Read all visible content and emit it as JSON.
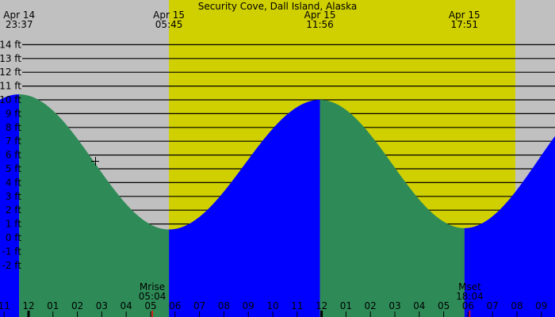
{
  "chart_data": {
    "type": "area",
    "title": "Security Cove, Dall Island, Alaska",
    "y_unit": "ft",
    "ylim": [
      -2,
      14
    ],
    "y_ticks": [
      14,
      13,
      12,
      11,
      10,
      9,
      8,
      7,
      6,
      5,
      4,
      3,
      2,
      1,
      0,
      -1,
      -2
    ],
    "y_tick_labels": [
      "14 ft",
      "13 ft",
      "12 ft",
      "11 ft",
      "10 ft",
      "9 ft",
      "8 ft",
      "7 ft",
      "6 ft",
      "5 ft",
      "4 ft",
      "3 ft",
      "2 ft",
      "1 ft",
      "0 ft",
      "-1 ft",
      "-2 ft"
    ],
    "x_tick_labels": [
      "11",
      "12",
      "01",
      "02",
      "03",
      "04",
      "05",
      "06",
      "07",
      "08",
      "09",
      "10",
      "11",
      "12",
      "01",
      "02",
      "03",
      "04",
      "05",
      "06",
      "07",
      "08",
      "09"
    ],
    "x_range": [
      "Apr 14 22:50",
      "Apr 15 21:34"
    ],
    "grid": true,
    "extremes": [
      {
        "date": "Apr 14",
        "time": "23:37",
        "type": "high",
        "height_ft": 10.4
      },
      {
        "date": "Apr 15",
        "time": "05:45",
        "type": "low",
        "height_ft": 0.6
      },
      {
        "date": "Apr 15",
        "time": "11:56",
        "type": "high",
        "height_ft": 10.0
      },
      {
        "date": "Apr 15",
        "time": "17:51",
        "type": "low",
        "height_ft": 0.7
      }
    ],
    "daylight": {
      "start": "05:45",
      "end": "19:56"
    },
    "moon_events": [
      {
        "label": "Mrise",
        "time": "05:04"
      },
      {
        "label": "Mset",
        "time": "18:04"
      }
    ],
    "colors": {
      "night": "#c0c0c0",
      "day": "#d0d000",
      "falling": "#2e8b57",
      "rising": "#0000ff",
      "moon_tick": "#ff0000"
    }
  }
}
